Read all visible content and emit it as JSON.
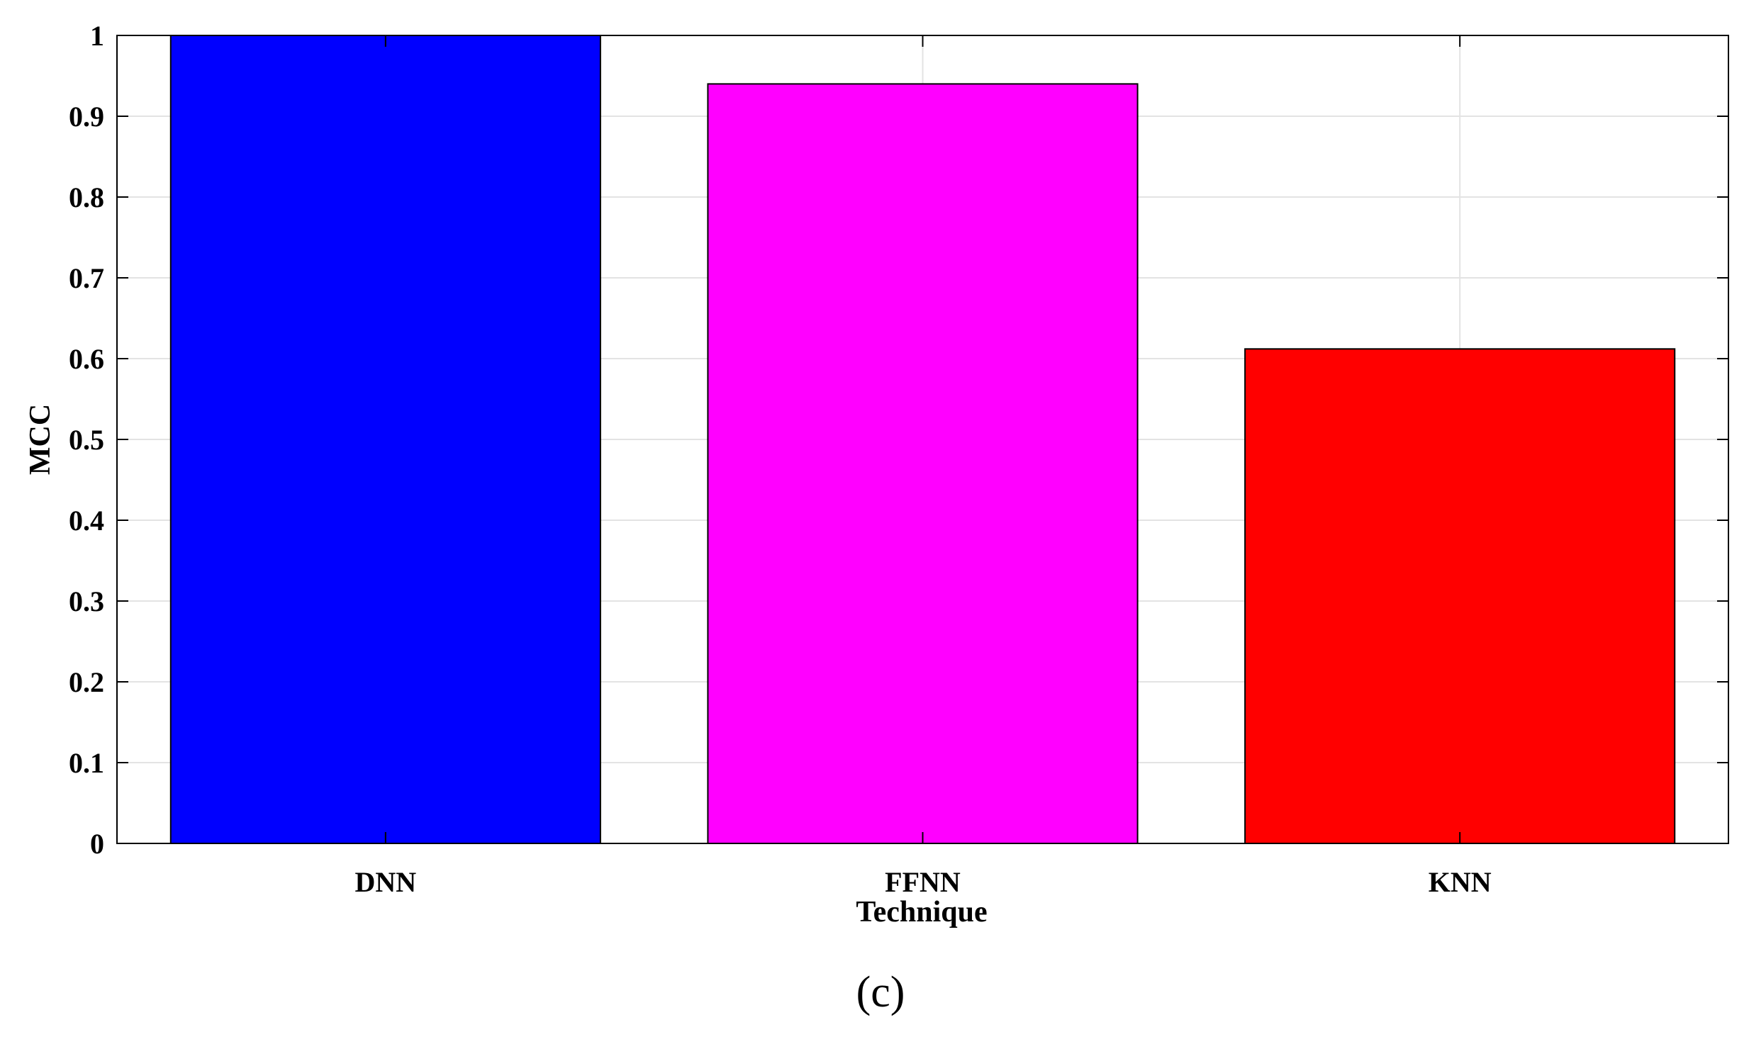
{
  "chart_data": {
    "type": "bar",
    "categories": [
      "DNN",
      "FFNN",
      "KNN"
    ],
    "values": [
      1.0,
      0.94,
      0.612
    ],
    "colors": [
      "#0000ff",
      "#ff00ff",
      "#ff0000"
    ],
    "xlabel": "Technique",
    "ylabel": "MCC",
    "ylim": [
      0,
      1
    ],
    "yticks": [
      0,
      0.1,
      0.2,
      0.3,
      0.4,
      0.5,
      0.6,
      0.7,
      0.8,
      0.9,
      1
    ],
    "ytick_labels": [
      "0",
      "0.1",
      "0.2",
      "0.3",
      "0.4",
      "0.5",
      "0.6",
      "0.7",
      "0.8",
      "0.9",
      "1"
    ],
    "grid": true
  },
  "panel_label": "(c)"
}
